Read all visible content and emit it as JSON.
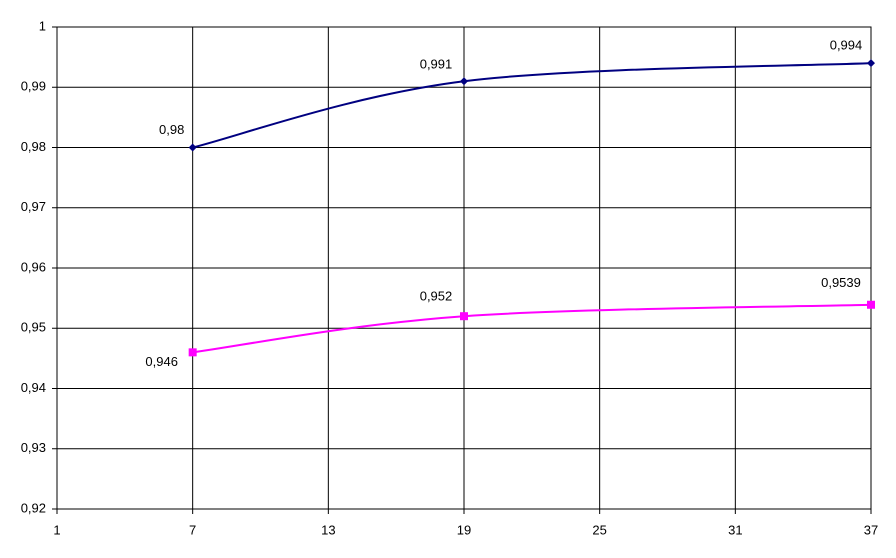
{
  "chart_data": {
    "type": "line",
    "x": [
      7,
      19,
      37
    ],
    "series": [
      {
        "color": "#000080",
        "marker": "diamond",
        "values": [
          0.98,
          0.991,
          0.994
        ],
        "value_labels": [
          "0,98",
          "0,991",
          "0,994"
        ]
      },
      {
        "color": "#ff00ff",
        "marker": "square",
        "values": [
          0.946,
          0.952,
          0.9539
        ],
        "value_labels": [
          "0,946",
          "0,952",
          "0,9539"
        ]
      }
    ],
    "xlim": [
      1,
      37
    ],
    "xticks": [
      1,
      7,
      13,
      19,
      25,
      31,
      37
    ],
    "ylim": [
      0.92,
      1
    ],
    "yticks": [
      {
        "value": 0.92,
        "label": "0,92"
      },
      {
        "value": 0.93,
        "label": "0,93"
      },
      {
        "value": 0.94,
        "label": "0,94"
      },
      {
        "value": 0.95,
        "label": "0,95"
      },
      {
        "value": 0.96,
        "label": "0,96"
      },
      {
        "value": 0.97,
        "label": "0,97"
      },
      {
        "value": 0.98,
        "label": "0,98"
      },
      {
        "value": 0.99,
        "label": "0,99"
      },
      1
    ],
    "grid": true,
    "smooth": true
  }
}
